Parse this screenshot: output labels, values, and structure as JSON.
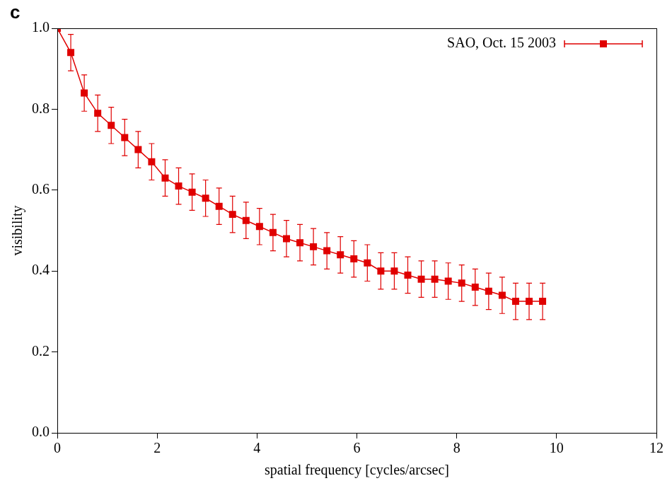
{
  "chart_data": {
    "type": "line",
    "x_label": "spatial frequency [cycles/arcsec]",
    "y_label": "visibility",
    "annotations": [
      "c"
    ],
    "x": [
      0,
      0.27,
      0.54,
      0.81,
      1.08,
      1.35,
      1.62,
      1.89,
      2.16,
      2.43,
      2.7,
      2.97,
      3.24,
      3.51,
      3.78,
      4.05,
      4.32,
      4.59,
      4.86,
      5.13,
      5.4,
      5.67,
      5.94,
      6.21,
      6.48,
      6.75,
      7.02,
      7.29,
      7.56,
      7.83,
      8.1,
      8.37,
      8.64,
      8.91,
      9.18,
      9.45,
      9.72
    ],
    "series": [
      {
        "name": "SAO, Oct. 15 2003",
        "color": "#e00000",
        "marker": "square",
        "line_style": "solid",
        "values": [
          1.0,
          0.94,
          0.84,
          0.79,
          0.76,
          0.73,
          0.7,
          0.67,
          0.63,
          0.61,
          0.595,
          0.58,
          0.56,
          0.54,
          0.525,
          0.51,
          0.495,
          0.48,
          0.47,
          0.46,
          0.45,
          0.44,
          0.43,
          0.42,
          0.4,
          0.4,
          0.39,
          0.38,
          0.38,
          0.375,
          0.37,
          0.36,
          0.35,
          0.34,
          0.325,
          0.325,
          0.325
        ],
        "errors": [
          0,
          0.045,
          0.045,
          0.045,
          0.045,
          0.045,
          0.045,
          0.045,
          0.045,
          0.045,
          0.045,
          0.045,
          0.045,
          0.045,
          0.045,
          0.045,
          0.045,
          0.045,
          0.045,
          0.045,
          0.045,
          0.045,
          0.045,
          0.045,
          0.045,
          0.045,
          0.045,
          0.045,
          0.045,
          0.045,
          0.045,
          0.045,
          0.045,
          0.045,
          0.045,
          0.045,
          0.045
        ]
      }
    ],
    "xlim": [
      0,
      12
    ],
    "xticks": [
      0,
      2,
      4,
      6,
      8,
      10,
      12
    ],
    "ylim": [
      0,
      1
    ],
    "yticks": [
      {
        "value": 0,
        "label": "0.0"
      },
      0.2,
      0.4,
      0.6,
      0.8,
      {
        "value": 1,
        "label": "1.0"
      }
    ],
    "grid": false,
    "legend": "top right"
  }
}
